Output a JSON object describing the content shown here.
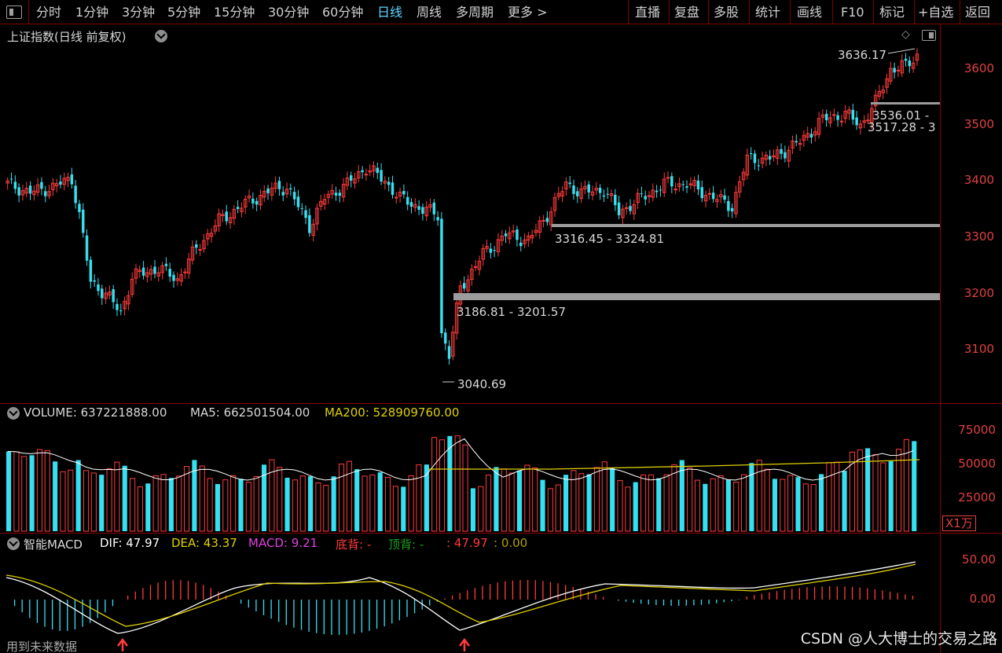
{
  "toolbar": {
    "left_tabs": [
      "分时",
      "1分钟",
      "3分钟",
      "5分钟",
      "15分钟",
      "30分钟",
      "60分钟",
      "日线",
      "周线",
      "多周期",
      "更多 >"
    ],
    "active_tab": "日线",
    "right_buttons": [
      "直播",
      "复盘",
      "多股",
      "统计",
      "画线",
      "F10",
      "标记",
      "+自选",
      "返回"
    ]
  },
  "price_panel": {
    "title": "上证指数(日线 前复权)",
    "y_ticks": [
      "3600",
      "3500",
      "3400",
      "3300",
      "3200",
      "3100"
    ],
    "high_label": "3636.17",
    "low_label": "3040.69",
    "gaps": [
      {
        "label": "3536.01 - "
      },
      {
        "label": "3517.28 - 3"
      },
      {
        "label": "3316.45 - 3324.81"
      },
      {
        "label": "3186.81 - 3201.57"
      }
    ]
  },
  "volume_panel": {
    "label_volume": "VOLUME: 637221888.00",
    "label_ma5": "MA5: 662501504.00",
    "label_ma200": "MA200: 528909760.00",
    "y_ticks": [
      "75000",
      "50000",
      "25000"
    ],
    "unit": "X1万"
  },
  "macd_panel": {
    "title": "智能MACD",
    "dif": "DIF: 47.97",
    "dea": "DEA: 43.37",
    "macd": "MACD: 9.21",
    "bottom_div": "底背: -",
    "top_div": "顶背: -",
    "extra1": ": 47.97",
    "extra2": ": 0.00",
    "y_ticks": [
      "50.00",
      "0.00"
    ],
    "footer": "用到未来数据"
  },
  "colors": {
    "up": "#ff3b3b",
    "down": "#36e0f0",
    "ma5": "#ffffff",
    "ma200": "#e0d000",
    "dif": "#ffffff",
    "dea": "#e0d000",
    "frame": "#8a0000"
  },
  "watermark": "CSDN @人大博士的交易之路"
}
